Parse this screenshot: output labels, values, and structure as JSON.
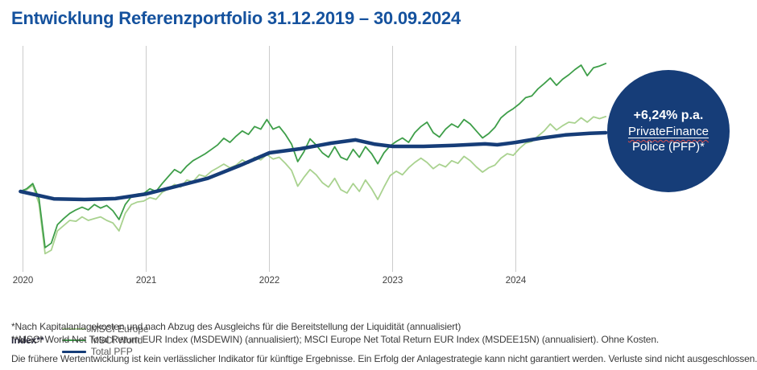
{
  "title": "Entwicklung Referenzportfolio 31.12.2019 – 30.09.2024",
  "colors": {
    "title_blue": "#15529e",
    "badge_navy": "#163d78",
    "msci_europe_green": "#a9d28f",
    "msci_world_green": "#3e9e49",
    "pfp_blue": "#163d78",
    "gridline_gray": "#cccccc",
    "tick_label_gray": "#3f3f3f",
    "squiggle_red": "#d84a4a"
  },
  "badge": {
    "rate": "+6,24% p.a.",
    "product": "PrivateFinance",
    "product_sub": "Police (PFP)*"
  },
  "legend": {
    "index_label": "Index**",
    "items": [
      {
        "label": "MSCI Europe",
        "color": "#a9d28f",
        "line_width": 2
      },
      {
        "label": "MSCI World",
        "color": "#3e9e49",
        "line_width": 2
      },
      {
        "label": "Total PFP",
        "color": "#163d78",
        "line_width": 3
      }
    ]
  },
  "footnotes": [
    "*Nach Kapitalanlagekosten und nach Abzug des Ausgleichs für die Bereitstellung der Liquidität (annualisiert)",
    "**MSCI World Net Total Return EUR Index (MSDEWIN) (annualisiert); MSCI Europe Net Total Return EUR Index (MSDEE15N) (annualisiert). Ohne Kosten.",
    "Die frühere Wertentwicklung ist kein verlässlicher Indikator für künftige Ergebnisse. Ein Erfolg der Anlagestrategie kann nicht garantiert werden. Verluste sind nicht ausgeschlossen."
  ],
  "chart_data": {
    "type": "line",
    "title": "Entwicklung Referenzportfolio 31.12.2019 – 30.09.2024",
    "x_axis": {
      "unit": "year",
      "range": [
        2019.95,
        2024.95
      ],
      "ticks": [
        {
          "year": 2020,
          "label": "2020"
        },
        {
          "year": 2021,
          "label": "2021"
        },
        {
          "year": 2022,
          "label": "2022"
        },
        {
          "year": 2023,
          "label": "2023"
        },
        {
          "year": 2024,
          "label": "2024"
        }
      ]
    },
    "y_axis": {
      "visible": false,
      "unit": "Index (31.12.2019 = 100)",
      "range_estimate": [
        58,
        185
      ]
    },
    "grid": "vertical-only",
    "legend_position": "bottom-left",
    "annotation": {
      "text": "+6,24% p.a. PrivateFinance Police (PFP)*",
      "series": "Total PFP"
    },
    "series": [
      {
        "name": "MSCI Europe",
        "color": "#a9d28f",
        "line_width": 1.8,
        "x_start": 2019.98,
        "x_step": 0.05,
        "values": [
          100,
          101,
          103.5,
          93,
          64.5,
          66.5,
          77.5,
          80.5,
          83.5,
          83,
          85.5,
          83.5,
          84.5,
          85.5,
          83.5,
          82,
          77.5,
          87.5,
          92.5,
          94,
          94.5,
          96.5,
          95.5,
          99.5,
          101.5,
          104,
          102.5,
          106.5,
          105.5,
          109.5,
          108.5,
          111.5,
          113.5,
          115.6,
          113.5,
          115,
          118,
          116,
          119.5,
          118,
          121,
          118.5,
          119.5,
          116,
          112,
          103,
          108,
          112.5,
          109.5,
          105,
          102.5,
          107.5,
          101,
          99.1,
          104.5,
          100,
          106.5,
          101.5,
          95.4,
          102.5,
          109,
          111.5,
          109.5,
          113.5,
          116.5,
          119,
          116.5,
          113,
          115.5,
          114,
          117.5,
          116,
          120,
          117.5,
          114,
          111,
          113.5,
          115,
          119,
          121.5,
          120.6,
          124.5,
          127.5,
          128.5,
          131.5,
          134.5,
          138.5,
          135,
          137.5,
          139.5,
          139,
          142,
          139.5,
          142.5,
          141.5,
          142.7
        ]
      },
      {
        "name": "MSCI World",
        "color": "#3e9e49",
        "line_width": 1.8,
        "x_start": 2019.98,
        "x_step": 0.05,
        "values": [
          100,
          101.5,
          104.5,
          96,
          68,
          70.5,
          81,
          84.5,
          87.5,
          89.5,
          91,
          89.5,
          92.5,
          90.5,
          92,
          89,
          84,
          92.5,
          97,
          98.5,
          98.8,
          101.5,
          100,
          104.5,
          108.5,
          112.5,
          110.5,
          114.5,
          117.5,
          119.5,
          121.5,
          124,
          126.5,
          130.3,
          128,
          131.5,
          134.5,
          132.5,
          137,
          135.5,
          141,
          135.5,
          137,
          132.5,
          127,
          117,
          122.5,
          130,
          126.5,
          122,
          119.5,
          125.5,
          119.5,
          118,
          124,
          119.5,
          125.5,
          121.5,
          115.8,
          122,
          126,
          128.5,
          130.5,
          128,
          133.5,
          137,
          139.5,
          133.5,
          131,
          135.5,
          138.5,
          136.5,
          141,
          138.5,
          134.5,
          130.5,
          133,
          136.5,
          142,
          145,
          147.2,
          150,
          153.5,
          154.5,
          158.5,
          161.5,
          164.7,
          160.5,
          164,
          166.5,
          169.5,
          172,
          166,
          170.5,
          171.5,
          173
        ]
      },
      {
        "name": "Total PFP",
        "color": "#163d78",
        "line_width": 4.5,
        "points": [
          [
            2019.98,
            100
          ],
          [
            2020.25,
            95.8
          ],
          [
            2020.5,
            95.4
          ],
          [
            2020.75,
            95.9
          ],
          [
            2021,
            98.6
          ],
          [
            2021.25,
            103
          ],
          [
            2021.5,
            107.5
          ],
          [
            2021.75,
            114.5
          ],
          [
            2022,
            122
          ],
          [
            2022.25,
            124.3
          ],
          [
            2022.5,
            127.5
          ],
          [
            2022.7,
            129.4
          ],
          [
            2022.85,
            127
          ],
          [
            2023,
            125.7
          ],
          [
            2023.25,
            125.7
          ],
          [
            2023.5,
            126.3
          ],
          [
            2023.75,
            127.1
          ],
          [
            2023.85,
            126.6
          ],
          [
            2024,
            128
          ],
          [
            2024.2,
            130.3
          ],
          [
            2024.4,
            132.2
          ],
          [
            2024.6,
            133.1
          ],
          [
            2024.73,
            133.5
          ]
        ]
      }
    ]
  }
}
